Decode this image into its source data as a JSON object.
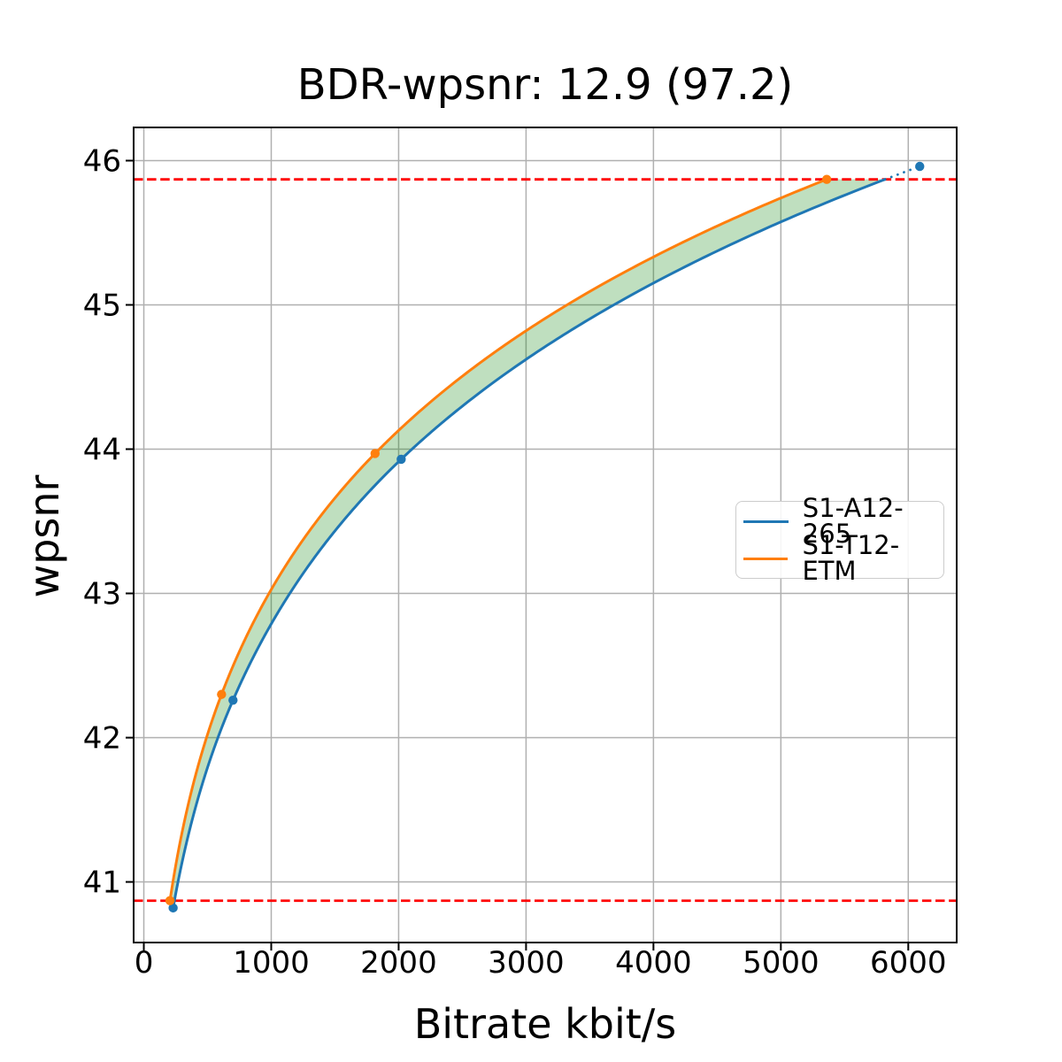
{
  "chart_data": {
    "type": "line",
    "title": "BDR-wpsnr: 12.9 (97.2)",
    "xlabel": "Bitrate kbit/s",
    "ylabel": "wpsnr",
    "xlim": [
      -80,
      6380
    ],
    "ylim": [
      40.58,
      46.23
    ],
    "xticks": [
      0,
      1000,
      2000,
      3000,
      4000,
      5000,
      6000
    ],
    "yticks": [
      41,
      42,
      43,
      44,
      45,
      46
    ],
    "grid": true,
    "grid_color": "#b0b0b0",
    "background_color": "#ffffff",
    "legend_position": "center right",
    "series": [
      {
        "name": "S1-A12-265",
        "color": "#1f77b4",
        "marker": "circle",
        "interpolation": "pchip-log-x",
        "x": [
          230,
          700,
          2020,
          6090
        ],
        "y": [
          40.82,
          42.26,
          43.93,
          45.96
        ]
      },
      {
        "name": "S1-T12-ETM",
        "color": "#ff7f0e",
        "marker": "circle",
        "interpolation": "pchip-log-x",
        "x": [
          205,
          610,
          1815,
          5360
        ],
        "y": [
          40.87,
          42.3,
          43.97,
          45.87
        ]
      }
    ],
    "reference_lines": {
      "values": [
        40.87,
        45.87
      ],
      "color": "#ff0000",
      "style": "dashed"
    },
    "fill_between": {
      "color": "#008000",
      "opacity": 0.25,
      "y_range": [
        40.87,
        45.87
      ]
    }
  }
}
